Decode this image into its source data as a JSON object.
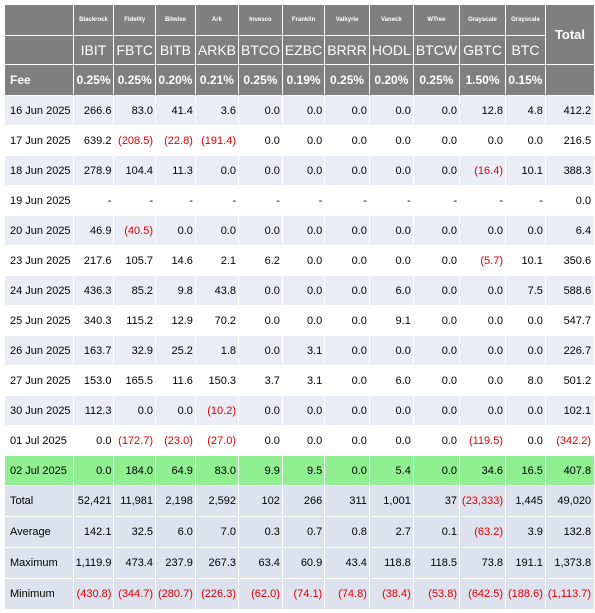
{
  "chart_data": {
    "type": "table",
    "corner_label": "Fee",
    "total_label": "Total",
    "columns": [
      {
        "provider": "Blackrock",
        "ticker": "IBIT",
        "fee": "0.25%"
      },
      {
        "provider": "Fidelity",
        "ticker": "FBTC",
        "fee": "0.25%"
      },
      {
        "provider": "Bitwise",
        "ticker": "BITB",
        "fee": "0.20%"
      },
      {
        "provider": "Ark",
        "ticker": "ARKB",
        "fee": "0.21%"
      },
      {
        "provider": "Invesco",
        "ticker": "BTCO",
        "fee": "0.25%"
      },
      {
        "provider": "Franklin",
        "ticker": "EZBC",
        "fee": "0.19%"
      },
      {
        "provider": "Valkyrie",
        "ticker": "BRRR",
        "fee": "0.25%"
      },
      {
        "provider": "Vaneck",
        "ticker": "HODL",
        "fee": "0.20%"
      },
      {
        "provider": "WTree",
        "ticker": "BTCW",
        "fee": "0.25%"
      },
      {
        "provider": "Grayscale",
        "ticker": "GBTC",
        "fee": "1.50%"
      },
      {
        "provider": "Grayscale",
        "ticker": "BTC",
        "fee": "0.15%"
      }
    ],
    "rows": [
      {
        "date": "16 Jun 2025",
        "values": [
          "266.6",
          "83.0",
          "41.4",
          "3.6",
          "0.0",
          "0.0",
          "0.0",
          "0.0",
          "0.0",
          "12.8",
          "4.8",
          "412.2"
        ]
      },
      {
        "date": "17 Jun 2025",
        "values": [
          "639.2",
          "(208.5)",
          "(22.8)",
          "(191.4)",
          "0.0",
          "0.0",
          "0.0",
          "0.0",
          "0.0",
          "0.0",
          "0.0",
          "216.5"
        ]
      },
      {
        "date": "18 Jun 2025",
        "values": [
          "278.9",
          "104.4",
          "11.3",
          "0.0",
          "0.0",
          "0.0",
          "0.0",
          "0.0",
          "0.0",
          "(16.4)",
          "10.1",
          "388.3"
        ]
      },
      {
        "date": "19 Jun 2025",
        "values": [
          "-",
          "-",
          "-",
          "-",
          "-",
          "-",
          "-",
          "-",
          "-",
          "-",
          "-",
          "0.0"
        ]
      },
      {
        "date": "20 Jun 2025",
        "values": [
          "46.9",
          "(40.5)",
          "0.0",
          "0.0",
          "0.0",
          "0.0",
          "0.0",
          "0.0",
          "0.0",
          "0.0",
          "0.0",
          "6.4"
        ]
      },
      {
        "date": "23 Jun 2025",
        "values": [
          "217.6",
          "105.7",
          "14.6",
          "2.1",
          "6.2",
          "0.0",
          "0.0",
          "0.0",
          "0.0",
          "(5.7)",
          "10.1",
          "350.6"
        ]
      },
      {
        "date": "24 Jun 2025",
        "values": [
          "436.3",
          "85.2",
          "9.8",
          "43.8",
          "0.0",
          "0.0",
          "0.0",
          "6.0",
          "0.0",
          "0.0",
          "7.5",
          "588.6"
        ]
      },
      {
        "date": "25 Jun 2025",
        "values": [
          "340.3",
          "115.2",
          "12.9",
          "70.2",
          "0.0",
          "0.0",
          "0.0",
          "9.1",
          "0.0",
          "0.0",
          "0.0",
          "547.7"
        ]
      },
      {
        "date": "26 Jun 2025",
        "values": [
          "163.7",
          "32.9",
          "25.2",
          "1.8",
          "0.0",
          "3.1",
          "0.0",
          "0.0",
          "0.0",
          "0.0",
          "0.0",
          "226.7"
        ]
      },
      {
        "date": "27 Jun 2025",
        "values": [
          "153.0",
          "165.5",
          "11.6",
          "150.3",
          "3.7",
          "3.1",
          "0.0",
          "6.0",
          "0.0",
          "0.0",
          "8.0",
          "501.2"
        ]
      },
      {
        "date": "30 Jun 2025",
        "values": [
          "112.3",
          "0.0",
          "0.0",
          "(10.2)",
          "0.0",
          "0.0",
          "0.0",
          "0.0",
          "0.0",
          "0.0",
          "0.0",
          "102.1"
        ]
      },
      {
        "date": "01 Jul 2025",
        "values": [
          "0.0",
          "(172.7)",
          "(23.0)",
          "(27.0)",
          "0.0",
          "0.0",
          "0.0",
          "0.0",
          "0.0",
          "(119.5)",
          "0.0",
          "(342.2)"
        ]
      },
      {
        "date": "02 Jul 2025",
        "values": [
          "0.0",
          "184.0",
          "64.9",
          "83.0",
          "9.9",
          "9.5",
          "0.0",
          "5.4",
          "0.0",
          "34.6",
          "16.5",
          "407.8"
        ],
        "highlight": true
      }
    ],
    "summary": [
      {
        "label": "Total",
        "values": [
          "52,421",
          "11,981",
          "2,198",
          "2,592",
          "102",
          "266",
          "311",
          "1,001",
          "37",
          "(23,333)",
          "1,445",
          "49,020"
        ]
      },
      {
        "label": "Average",
        "values": [
          "142.1",
          "32.5",
          "6.0",
          "7.0",
          "0.3",
          "0.7",
          "0.8",
          "2.7",
          "0.1",
          "(63.2)",
          "3.9",
          "132.8"
        ]
      },
      {
        "label": "Maximum",
        "values": [
          "1,119.9",
          "473.4",
          "237.9",
          "267.3",
          "63.4",
          "60.9",
          "43.4",
          "118.8",
          "118.5",
          "73.8",
          "191.1",
          "1,373.8"
        ]
      },
      {
        "label": "Minimum",
        "values": [
          "(430.8)",
          "(344.7)",
          "(280.7)",
          "(226.3)",
          "(62.0)",
          "(74.1)",
          "(74.8)",
          "(38.4)",
          "(53.8)",
          "(642.5)",
          "(188.6)",
          "(1,113.7)"
        ]
      }
    ],
    "colors": {
      "header_bg": "#7f7f7f",
      "row_band": "#eaedf5",
      "highlight_row": "#90ef90",
      "summary_bg": "#dde2ee",
      "negative_text": "#e00000"
    }
  }
}
